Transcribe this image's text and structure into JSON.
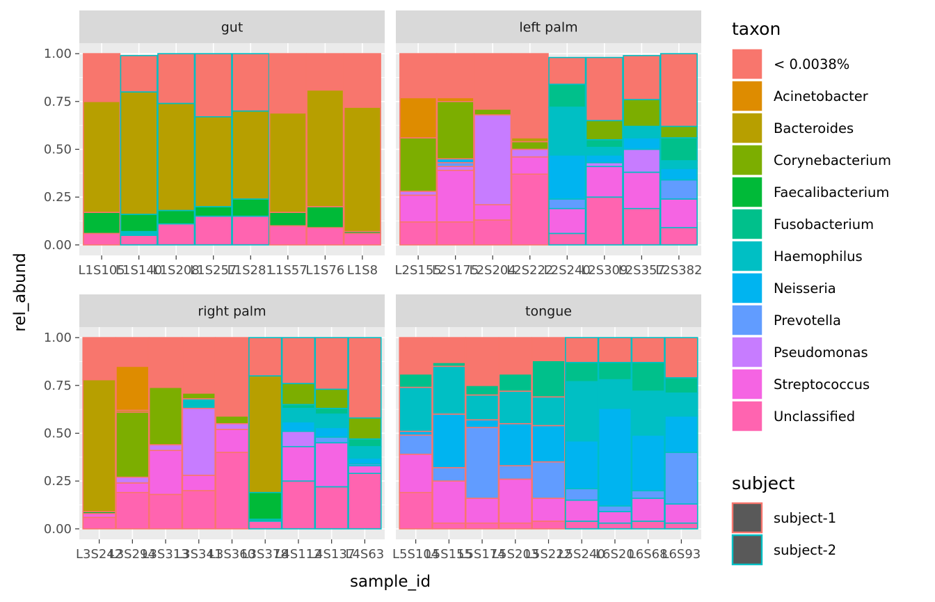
{
  "chart_data": {
    "type": "bar",
    "subtype": "stacked-facet",
    "facets": [
      {
        "name": "gut",
        "samples": [
          {
            "id": "L1S105",
            "subject": "subject-1",
            "taxa": {
              "< 0.0038%": 0.25,
              "Bacteroides": 0.58,
              "Faecalibacterium": 0.11,
              "Unclassified": 0.06
            }
          },
          {
            "id": "L1S140",
            "subject": "subject-2",
            "taxa": {
              "< 0.0038%": 0.19,
              "Bacteroides": 0.64,
              "Faecalibacterium": 0.09,
              "Haemophilus": 0.02,
              "Unclassified": 0.05
            }
          },
          {
            "id": "L1S208",
            "subject": "subject-2",
            "taxa": {
              "< 0.0038%": 0.26,
              "Bacteroides": 0.56,
              "Faecalibacterium": 0.07,
              "Unclassified": 0.11
            }
          },
          {
            "id": "L1S257",
            "subject": "subject-2",
            "taxa": {
              "< 0.0038%": 0.33,
              "Bacteroides": 0.47,
              "Faecalibacterium": 0.05,
              "Unclassified": 0.15
            }
          },
          {
            "id": "L1S281",
            "subject": "subject-2",
            "taxa": {
              "< 0.0038%": 0.3,
              "Bacteroides": 0.46,
              "Faecalibacterium": 0.09,
              "Unclassified": 0.15
            }
          },
          {
            "id": "L1S57",
            "subject": "subject-1",
            "taxa": {
              "< 0.0038%": 0.31,
              "Bacteroides": 0.52,
              "Faecalibacterium": 0.07,
              "Unclassified": 0.1
            }
          },
          {
            "id": "L1S76",
            "subject": "subject-1",
            "taxa": {
              "< 0.0038%": 0.19,
              "Bacteroides": 0.61,
              "Faecalibacterium": 0.11,
              "Unclassified": 0.09
            }
          },
          {
            "id": "L1S8",
            "subject": "subject-1",
            "taxa": {
              "< 0.0038%": 0.28,
              "Bacteroides": 0.65,
              "Faecalibacterium": 0.01,
              "Unclassified": 0.06
            }
          }
        ]
      },
      {
        "name": "left palm",
        "samples": [
          {
            "id": "L2S155",
            "subject": "subject-1",
            "taxa": {
              "< 0.0038%": 0.23,
              "Acinetobacter": 0.21,
              "Corynebacterium": 0.28,
              "Pseudomonas": 0.02,
              "Streptococcus": 0.14,
              "Unclassified": 0.12
            }
          },
          {
            "id": "L2S175",
            "subject": "subject-1",
            "taxa": {
              "< 0.0038%": 0.23,
              "Acinetobacter": 0.02,
              "Corynebacterium": 0.3,
              "Neisseria": 0.02,
              "Prevotella": 0.02,
              "Pseudomonas": 0.02,
              "Streptococcus": 0.27,
              "Unclassified": 0.12
            }
          },
          {
            "id": "L2S204",
            "subject": "subject-1",
            "taxa": {
              "< 0.0038%": 0.29,
              "Corynebacterium": 0.03,
              "Pseudomonas": 0.47,
              "Streptococcus": 0.08,
              "Unclassified": 0.13
            }
          },
          {
            "id": "L2S222",
            "subject": "subject-1",
            "taxa": {
              "< 0.0038%": 0.44,
              "Bacteroides": 0.02,
              "Corynebacterium": 0.04,
              "Pseudomonas": 0.04,
              "Streptococcus": 0.09,
              "Unclassified": 0.37
            }
          },
          {
            "id": "L2S240",
            "subject": "subject-2",
            "taxa": {
              "< 0.0038%": 0.14,
              "Fusobacterium": 0.12,
              "Haemophilus": 0.25,
              "Neisseria": 0.23,
              "Prevotella": 0.05,
              "Streptococcus": 0.13,
              "Unclassified": 0.06
            }
          },
          {
            "id": "L2S309",
            "subject": "subject-2",
            "taxa": {
              "< 0.0038%": 0.33,
              "Corynebacterium": 0.1,
              "Fusobacterium": 0.04,
              "Haemophilus": 0.04,
              "Neisseria": 0.04,
              "Pseudomonas": 0.02,
              "Streptococcus": 0.16,
              "Unclassified": 0.25
            }
          },
          {
            "id": "L2S357",
            "subject": "subject-2",
            "taxa": {
              "< 0.0038%": 0.23,
              "Corynebacterium": 0.14,
              "Haemophilus": 0.06,
              "Neisseria": 0.06,
              "Pseudomonas": 0.12,
              "Streptococcus": 0.19,
              "Unclassified": 0.19
            }
          },
          {
            "id": "L2S382",
            "subject": "subject-2",
            "taxa": {
              "< 0.0038%": 0.38,
              "Corynebacterium": 0.06,
              "Fusobacterium": 0.12,
              "Haemophilus": 0.04,
              "Neisseria": 0.06,
              "Prevotella": 0.1,
              "Streptococcus": 0.15,
              "Unclassified": 0.09
            }
          }
        ]
      },
      {
        "name": "right palm",
        "samples": [
          {
            "id": "L3S242",
            "subject": "subject-1",
            "taxa": {
              "< 0.0038%": 0.22,
              "Bacteroides": 0.69,
              "Faecalibacterium": 0.01,
              "Streptococcus": 0.02,
              "Unclassified": 0.06
            }
          },
          {
            "id": "L3S294",
            "subject": "subject-1",
            "taxa": {
              "< 0.0038%": 0.15,
              "Acinetobacter": 0.23,
              "Corynebacterium": 0.34,
              "Bacteroides": 0.01,
              "Pseudomonas": 0.03,
              "Streptococcus": 0.05,
              "Unclassified": 0.19
            }
          },
          {
            "id": "L3S313",
            "subject": "subject-1",
            "taxa": {
              "< 0.0038%": 0.26,
              "Corynebacterium": 0.3,
              "Pseudomonas": 0.03,
              "Streptococcus": 0.23,
              "Unclassified": 0.18
            }
          },
          {
            "id": "L3S341",
            "subject": "subject-1",
            "taxa": {
              "< 0.0038%": 0.29,
              "Corynebacterium": 0.03,
              "Haemophilus": 0.05,
              "Pseudomonas": 0.35,
              "Streptococcus": 0.08,
              "Unclassified": 0.2
            }
          },
          {
            "id": "L3S360",
            "subject": "subject-1",
            "taxa": {
              "< 0.0038%": 0.41,
              "Corynebacterium": 0.04,
              "Pseudomonas": 0.03,
              "Streptococcus": 0.12,
              "Unclassified": 0.4
            }
          },
          {
            "id": "L3S378",
            "subject": "subject-2",
            "taxa": {
              "< 0.0038%": 0.2,
              "Bacteroides": 0.61,
              "Faecalibacterium": 0.14,
              "Fusobacterium": 0.01,
              "Unclassified": 0.04
            }
          },
          {
            "id": "L4S112",
            "subject": "subject-2",
            "taxa": {
              "< 0.0038%": 0.24,
              "Corynebacterium": 0.11,
              "Fusobacterium": 0.02,
              "Haemophilus": 0.07,
              "Neisseria": 0.05,
              "Pseudomonas": 0.08,
              "Streptococcus": 0.18,
              "Unclassified": 0.25
            }
          },
          {
            "id": "L4S137",
            "subject": "subject-2",
            "taxa": {
              "< 0.0038%": 0.27,
              "Corynebacterium": 0.1,
              "Fusobacterium": 0.03,
              "Haemophilus": 0.07,
              "Neisseria": 0.05,
              "Prevotella": 0.03,
              "Streptococcus": 0.23,
              "Unclassified": 0.22
            }
          },
          {
            "id": "L4S63",
            "subject": "subject-2",
            "taxa": {
              "< 0.0038%": 0.42,
              "Corynebacterium": 0.11,
              "Fusobacterium": 0.04,
              "Haemophilus": 0.06,
              "Neisseria": 0.03,
              "Prevotella": 0.01,
              "Streptococcus": 0.04,
              "Unclassified": 0.29
            }
          }
        ]
      },
      {
        "name": "tongue",
        "samples": [
          {
            "id": "L5S104",
            "subject": "subject-1",
            "taxa": {
              "< 0.0038%": 0.19,
              "Fusobacterium": 0.07,
              "Haemophilus": 0.23,
              "Neisseria": 0.02,
              "Prevotella": 0.1,
              "Streptococcus": 0.2,
              "Unclassified": 0.19
            }
          },
          {
            "id": "L5S155",
            "subject": "subject-1",
            "taxa": {
              "< 0.0038%": 0.13,
              "Fusobacterium": 0.02,
              "Haemophilus": 0.25,
              "Neisseria": 0.28,
              "Prevotella": 0.07,
              "Streptococcus": 0.22,
              "Unclassified": 0.03
            }
          },
          {
            "id": "L5S174",
            "subject": "subject-1",
            "taxa": {
              "< 0.0038%": 0.25,
              "Fusobacterium": 0.05,
              "Haemophilus": 0.13,
              "Neisseria": 0.04,
              "Prevotella": 0.37,
              "Streptococcus": 0.13,
              "Unclassified": 0.03
            }
          },
          {
            "id": "L5S203",
            "subject": "subject-1",
            "taxa": {
              "< 0.0038%": 0.19,
              "Fusobacterium": 0.09,
              "Haemophilus": 0.17,
              "Neisseria": 0.22,
              "Prevotella": 0.07,
              "Streptococcus": 0.23,
              "Unclassified": 0.03
            }
          },
          {
            "id": "L5S222",
            "subject": "subject-1",
            "taxa": {
              "< 0.0038%": 0.12,
              "Fusobacterium": 0.19,
              "Haemophilus": 0.15,
              "Neisseria": 0.19,
              "Prevotella": 0.19,
              "Streptococcus": 0.12,
              "Unclassified": 0.04
            }
          },
          {
            "id": "L5S240",
            "subject": "subject-2",
            "taxa": {
              "< 0.0038%": 0.13,
              "Fusobacterium": 0.1,
              "Haemophilus": 0.31,
              "Neisseria": 0.25,
              "Prevotella": 0.06,
              "Streptococcus": 0.11,
              "Unclassified": 0.04
            }
          },
          {
            "id": "L6S20",
            "subject": "subject-2",
            "taxa": {
              "< 0.0038%": 0.13,
              "Fusobacterium": 0.09,
              "Haemophilus": 0.15,
              "Neisseria": 0.51,
              "Prevotella": 0.03,
              "Streptococcus": 0.06,
              "Unclassified": 0.03
            }
          },
          {
            "id": "L6S68",
            "subject": "subject-2",
            "taxa": {
              "< 0.0038%": 0.13,
              "Fusobacterium": 0.15,
              "Haemophilus": 0.23,
              "Neisseria": 0.29,
              "Prevotella": 0.04,
              "Streptococcus": 0.12,
              "Unclassified": 0.04
            }
          },
          {
            "id": "L6S93",
            "subject": "subject-2",
            "taxa": {
              "< 0.0038%": 0.21,
              "Fusobacterium": 0.08,
              "Haemophilus": 0.12,
              "Neisseria": 0.19,
              "Prevotella": 0.27,
              "Streptococcus": 0.1,
              "Unclassified": 0.03
            }
          }
        ]
      }
    ],
    "stack_order_top_to_bottom": [
      "< 0.0038%",
      "Acinetobacter",
      "Bacteroides",
      "Corynebacterium",
      "Faecalibacterium",
      "Fusobacterium",
      "Haemophilus",
      "Neisseria",
      "Prevotella",
      "Pseudomonas",
      "Streptococcus",
      "Unclassified"
    ],
    "taxon_colors": {
      "< 0.0038%": "#F8766D",
      "Acinetobacter": "#DE8C00",
      "Bacteroides": "#B79F00",
      "Corynebacterium": "#7CAE00",
      "Faecalibacterium": "#00BA38",
      "Fusobacterium": "#00C08B",
      "Haemophilus": "#00BFC4",
      "Neisseria": "#00B4F0",
      "Prevotella": "#619CFF",
      "Pseudomonas": "#C77CFF",
      "Streptococcus": "#F564E3",
      "Unclassified": "#FF64B0"
    },
    "subject_colors": {
      "subject-1": "#F8766D",
      "subject-2": "#00BFC4"
    },
    "xlabel": "sample_id",
    "ylabel": "rel_abund",
    "ylim": [
      0,
      1.2
    ],
    "y_ticks": [
      "0.00",
      "0.25",
      "0.50",
      "0.75",
      "1.00"
    ],
    "legends": [
      {
        "title": "taxon",
        "entries": [
          "< 0.0038%",
          "Acinetobacter",
          "Bacteroides",
          "Corynebacterium",
          "Faecalibacterium",
          "Fusobacterium",
          "Haemophilus",
          "Neisseria",
          "Prevotella",
          "Pseudomonas",
          "Streptococcus",
          "Unclassified"
        ]
      },
      {
        "title": "subject",
        "entries": [
          "subject-1",
          "subject-2"
        ]
      }
    ],
    "legend_position": "right",
    "grid": true
  }
}
